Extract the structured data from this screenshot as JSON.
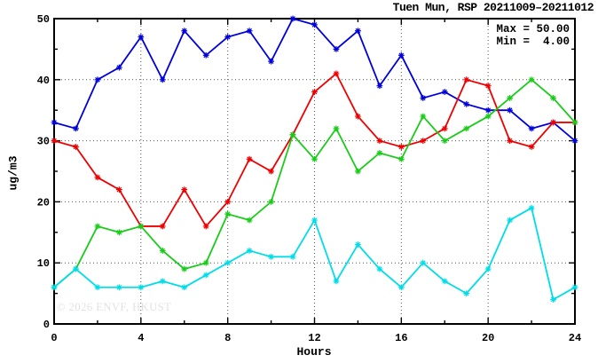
{
  "page": {
    "background": "#ffffff",
    "axis_color": "#000000"
  },
  "chart_data": {
    "type": "line",
    "title": "Tuen Mun, RSP 20211009–20211012",
    "xlabel": "Hours",
    "ylabel": "ug/m3",
    "xlim": [
      0,
      24
    ],
    "ylim": [
      0,
      50
    ],
    "xticks": [
      0,
      4,
      8,
      12,
      16,
      20,
      24
    ],
    "yticks": [
      0,
      10,
      20,
      30,
      40,
      50
    ],
    "x_minor_step": 2,
    "y_minor_step": 5,
    "grid": "dotted",
    "legend": "none",
    "marker": "asterisk",
    "x": [
      0,
      1,
      2,
      3,
      4,
      5,
      6,
      7,
      8,
      9,
      10,
      11,
      12,
      13,
      14,
      15,
      16,
      17,
      18,
      19,
      20,
      21,
      22,
      23,
      24
    ],
    "series": [
      {
        "name": "blue",
        "color": "#0000dd",
        "values": [
          33,
          32,
          40,
          42,
          47,
          40,
          48,
          44,
          47,
          48,
          43,
          50,
          49,
          45,
          48,
          39,
          44,
          37,
          38,
          36,
          35,
          35,
          32,
          33,
          30
        ]
      },
      {
        "name": "red",
        "color": "#ee0000",
        "values": [
          30,
          29,
          24,
          22,
          16,
          16,
          22,
          16,
          20,
          27,
          25,
          31,
          38,
          41,
          34,
          30,
          29,
          30,
          32,
          40,
          39,
          30,
          29,
          33,
          33
        ]
      },
      {
        "name": "green",
        "color": "#19cc19",
        "values": [
          6,
          9,
          16,
          15,
          16,
          12,
          9,
          10,
          18,
          17,
          20,
          31,
          27,
          32,
          25,
          28,
          27,
          34,
          30,
          32,
          34,
          37,
          40,
          37,
          33
        ]
      },
      {
        "name": "cyan",
        "color": "#00dde8",
        "values": [
          6,
          9,
          6,
          6,
          6,
          7,
          6,
          8,
          10,
          12,
          11,
          11,
          17,
          7,
          13,
          9,
          6,
          10,
          7,
          5,
          9,
          17,
          19,
          4,
          6
        ]
      }
    ],
    "annotations": {
      "max_label": "Max = 50.00",
      "min_label": "Min =  4.00"
    },
    "watermark": "© 2026 ENVF, HKUST"
  }
}
